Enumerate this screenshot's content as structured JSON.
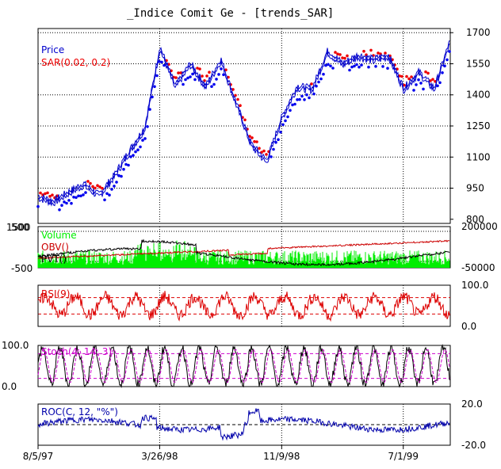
{
  "title": "_Indice Comit Ge  -  [trends_SAR]",
  "colors": {
    "price": "#0000cc",
    "sar_up": "#0000ee",
    "sar_down": "#ee0000",
    "volume": "#00ee00",
    "obv": "#cc0000",
    "pvt": "#000000",
    "rsi": "#dd0000",
    "stoch_k": "#000000",
    "stoch_d": "#cc00cc",
    "roc": "#0000aa",
    "grid": "#000000"
  },
  "x_axis": {
    "tick_labels": [
      "8/5/97",
      "3/26/98",
      "11/9/98",
      "7/1/99"
    ],
    "tick_positions": [
      0,
      0.295,
      0.591,
      0.886
    ]
  },
  "chart_data": [
    {
      "type": "line",
      "panel": "price",
      "legend": [
        {
          "name": "Price",
          "color": "#0000cc"
        },
        {
          "name": "SAR(0.02, 0.2)",
          "color": "#ee0000"
        }
      ],
      "ylim": [
        780,
        1720
      ],
      "yticks": [
        800,
        950,
        1100,
        1250,
        1400,
        1550,
        1700
      ],
      "x": [
        "8/5/97",
        "9/97",
        "10/97",
        "11/97",
        "12/97",
        "1/98",
        "2/98",
        "3/26/98",
        "4/98",
        "5/98",
        "6/98",
        "7/98",
        "8/98",
        "9/98",
        "10/98",
        "11/9/98",
        "12/98",
        "1/99",
        "2/99",
        "3/99",
        "4/99",
        "5/99",
        "6/99",
        "7/1/99",
        "8/99",
        "9/99",
        "10/99",
        "11/99"
      ],
      "series": [
        {
          "name": "Price",
          "values": [
            900,
            875,
            920,
            960,
            905,
            1000,
            1120,
            1230,
            1620,
            1430,
            1540,
            1430,
            1560,
            1350,
            1150,
            1070,
            1280,
            1430,
            1420,
            1600,
            1540,
            1580,
            1560,
            1580,
            1420,
            1500,
            1420,
            1640
          ]
        }
      ]
    },
    {
      "type": "area",
      "panel": "volume",
      "legend": [
        {
          "name": "Volume",
          "color": "#00ee00"
        },
        {
          "name": "OBV()",
          "color": "#cc0000"
        },
        {
          "name": "PVT()",
          "color": "#000000"
        }
      ],
      "y_left_ticks": [
        "500",
        "-500"
      ],
      "y_left_top_label": "1500",
      "yticks": [
        200000,
        -50000
      ],
      "ylim": [
        -60000,
        210000
      ]
    },
    {
      "type": "line",
      "panel": "rsi",
      "legend": [
        {
          "name": "RSI(9)",
          "color": "#dd0000"
        }
      ],
      "ylim": [
        0,
        100
      ],
      "yticks": [
        0.0,
        100.0
      ],
      "reference_lines": [
        70,
        30
      ]
    },
    {
      "type": "line",
      "panel": "stochastic",
      "legend": [
        {
          "name": "Stoch(4, 14, 3)",
          "color": "#cc00cc"
        }
      ],
      "ylim": [
        0,
        100
      ],
      "yticks": [
        0.0,
        100.0
      ],
      "reference_lines": [
        80,
        20
      ]
    },
    {
      "type": "line",
      "panel": "roc",
      "legend": [
        {
          "name": "ROC(C, 12, \"%\")",
          "color": "#0000aa"
        }
      ],
      "ylim": [
        -20,
        20
      ],
      "yticks": [
        20.0,
        -20.0
      ],
      "reference_lines": [
        0
      ]
    }
  ]
}
